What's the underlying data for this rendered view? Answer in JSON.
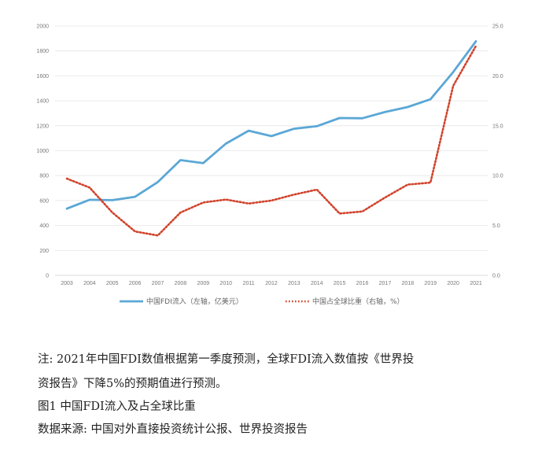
{
  "chart_data": {
    "type": "line",
    "x": [
      "2003",
      "2004",
      "2005",
      "2006",
      "2007",
      "2008",
      "2009",
      "2010",
      "2011",
      "2012",
      "2013",
      "2014",
      "2015",
      "2016",
      "2017",
      "2018",
      "2019",
      "2020",
      "2021"
    ],
    "series": [
      {
        "name": "中国FDI流入（左轴，亿美元）",
        "axis": "left",
        "style": "solid",
        "color": "#5ba7d6",
        "values": [
          535,
          606,
          603,
          630,
          748,
          924,
          900,
          1057,
          1160,
          1117,
          1176,
          1196,
          1262,
          1260,
          1310,
          1350,
          1412,
          1630,
          1877
        ]
      },
      {
        "name": "中国占全球比重（右轴，%）",
        "axis": "right",
        "style": "dotted",
        "color": "#d1432b",
        "values": [
          9.7,
          8.8,
          6.3,
          4.4,
          4.0,
          6.3,
          7.3,
          7.6,
          7.2,
          7.5,
          8.1,
          8.6,
          6.2,
          6.4,
          7.8,
          9.1,
          9.3,
          19.0,
          23.0
        ]
      }
    ],
    "y_left": {
      "ylim": [
        0,
        2000
      ],
      "ticks": [
        "0",
        "200",
        "400",
        "600",
        "800",
        "1000",
        "1200",
        "1400",
        "1600",
        "1800",
        "2000"
      ]
    },
    "y_right": {
      "ylim": [
        0,
        25
      ],
      "ticks": [
        "0.0",
        "5.0",
        "10.0",
        "15.0",
        "20.0",
        "25.0"
      ]
    },
    "grid": "horizontal",
    "legend_position": "bottom"
  },
  "notes": {
    "line1": "注: 2021年中国FDI数值根据第一季度预测，全球FDI流入数值按《世界投",
    "line2": "资报告》下降5%的预期值进行预测。",
    "figure_caption": "图1  中国FDI流入及占全球比重",
    "source": "数据来源: 中国对外直接投资统计公报、世界投资报告"
  }
}
